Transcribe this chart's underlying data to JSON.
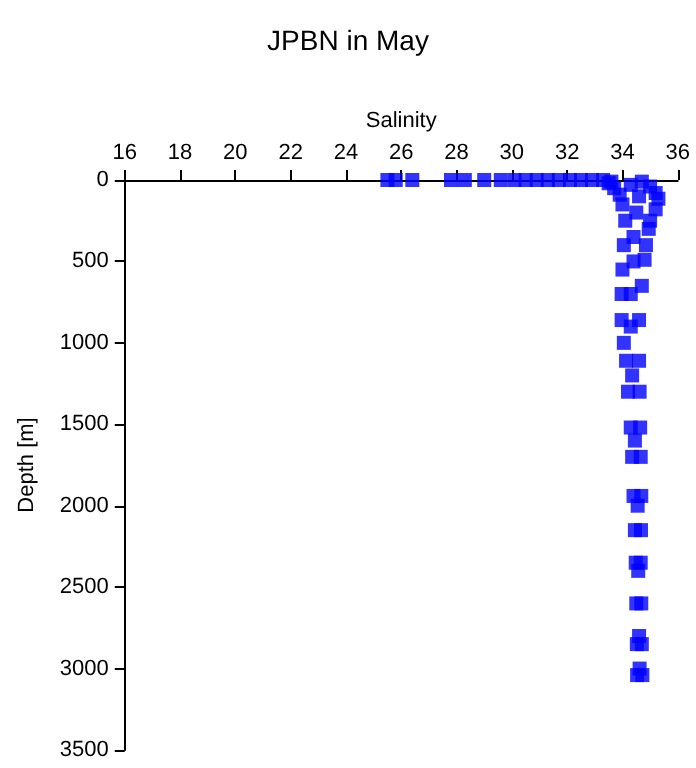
{
  "chart_data": {
    "type": "scatter",
    "title": "JPBN in May",
    "xlabel": "Salinity",
    "ylabel": "Depth [m]",
    "x": [
      25.5,
      25.8,
      26.4,
      27.8,
      28.3,
      29.0,
      29.6,
      30.1,
      30.5,
      30.9,
      31.3,
      31.7,
      32.1,
      32.5,
      32.9,
      33.3,
      33.6,
      33.5,
      33.7,
      33.9,
      34.0,
      34.1,
      34.05,
      34.0,
      33.97,
      33.97,
      34.05,
      34.13,
      34.2,
      34.3,
      34.35,
      34.4,
      34.45,
      34.48,
      34.5,
      34.52,
      34.53,
      34.7,
      35.0,
      35.2,
      35.3,
      35.2,
      35.0,
      34.95,
      34.85,
      34.8,
      34.7,
      34.6,
      34.6,
      34.62,
      34.64,
      34.66,
      34.68,
      34.67,
      34.66,
      34.68,
      34.7,
      34.72,
      34.3,
      34.6,
      34.5,
      34.4,
      34.4,
      34.3,
      34.3,
      34.35,
      34.45,
      34.55,
      34.57,
      34.6,
      34.62
    ],
    "series": [
      {
        "color": "#0000ff",
        "values": [
          0,
          0,
          0,
          0,
          0,
          0,
          0,
          0,
          0,
          0,
          0,
          0,
          0,
          0,
          0,
          0,
          10,
          20,
          50,
          90,
          150,
          250,
          400,
          550,
          700,
          860,
          1000,
          1110,
          1300,
          1520,
          1700,
          1940,
          2150,
          2350,
          2600,
          2850,
          3040,
          10,
          40,
          80,
          115,
          180,
          250,
          300,
          400,
          490,
          650,
          860,
          1110,
          1300,
          1520,
          1700,
          1940,
          2150,
          2350,
          2600,
          2850,
          3040,
          30,
          100,
          200,
          350,
          500,
          700,
          900,
          1200,
          1600,
          2000,
          2400,
          2800,
          3000
        ]
      }
    ],
    "xlim": [
      16,
      36
    ],
    "xticks": [
      16,
      18,
      20,
      22,
      24,
      26,
      28,
      30,
      32,
      34,
      36
    ],
    "ylim": [
      3500,
      0
    ],
    "yticks": [
      0,
      500,
      1000,
      1500,
      2000,
      2500,
      3000,
      3500
    ],
    "grid": false,
    "marker": "square"
  }
}
